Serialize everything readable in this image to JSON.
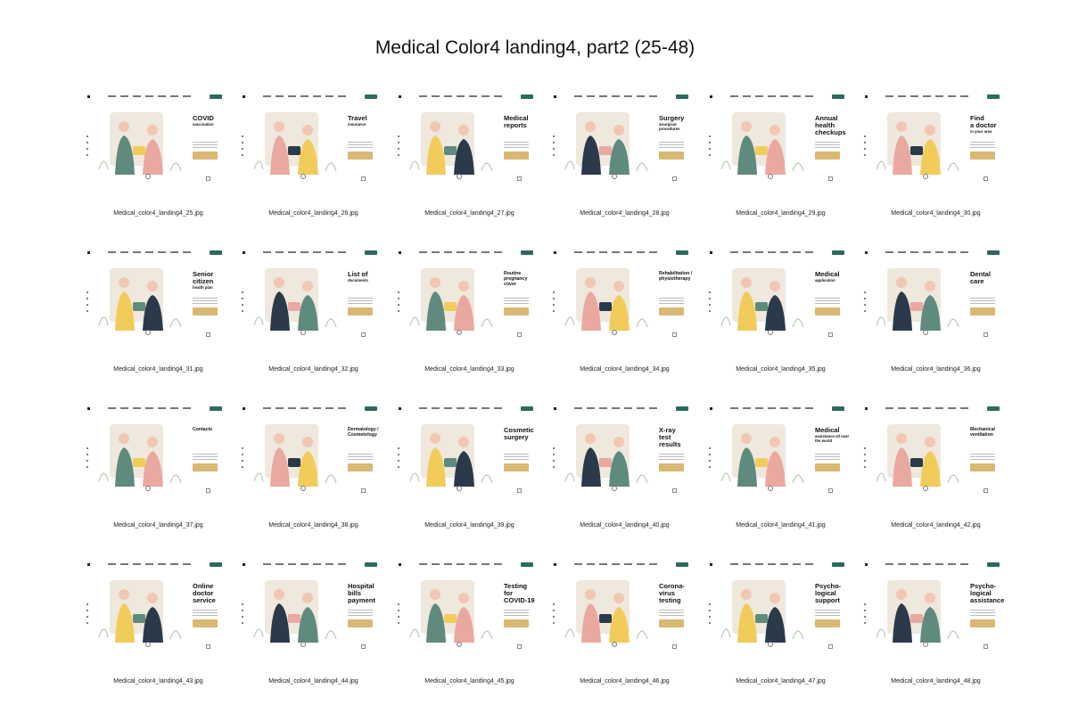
{
  "page": {
    "title": "Medical Color4 landing4, part2 (25-48)"
  },
  "palette": {
    "green": "#5f8a7e",
    "pink": "#e9a9a0",
    "yellow": "#f2cc5b",
    "dark": "#2b3a4a",
    "light": "#efe8dc",
    "button": "#d8b872",
    "nav_button": "#2c6b5f"
  },
  "slides": [
    {
      "title": "COVID",
      "subtitle": "vaccination",
      "file": "Medical_color4_landing4_25.jpg"
    },
    {
      "title": "Travel",
      "subtitle": "insurance",
      "file": "Medical_color4_landing4_26.jpg"
    },
    {
      "title": "Medical\nreports",
      "subtitle": "",
      "file": "Medical_color4_landing4_27.jpg"
    },
    {
      "title": "Surgery",
      "subtitle": "&surgical procedures",
      "file": "Medical_color4_landing4_28.jpg"
    },
    {
      "title": "Annual\nhealth\ncheckups",
      "subtitle": "",
      "file": "Medical_color4_landing4_29.jpg"
    },
    {
      "title": "Find\na doctor",
      "subtitle": "in your area",
      "file": "Medical_color4_landing4_30.jpg"
    },
    {
      "title": "Senior\ncitizen",
      "subtitle": "health plan",
      "file": "Medical_color4_landing4_31.jpg"
    },
    {
      "title": "List of",
      "subtitle": "documents",
      "file": "Medical_color4_landing4_32.jpg"
    },
    {
      "title": "Routine\npregnancy\ncover",
      "subtitle": "",
      "file": "Medical_color4_landing4_33.jpg",
      "small": true
    },
    {
      "title": "Rehabilitation /\nphysiotherapy",
      "subtitle": "",
      "file": "Medical_color4_landing4_34.jpg",
      "small": true
    },
    {
      "title": "Medical",
      "subtitle": "application",
      "file": "Medical_color4_landing4_35.jpg"
    },
    {
      "title": "Dental\ncare",
      "subtitle": "",
      "file": "Medical_color4_landing4_36.jpg"
    },
    {
      "title": "Contacts",
      "subtitle": "",
      "file": "Medical_color4_landing4_37.jpg",
      "small": true
    },
    {
      "title": "Dermatology /\nCosmetology",
      "subtitle": "",
      "file": "Medical_color4_landing4_38.jpg",
      "small": true
    },
    {
      "title": "Cosmetic\nsurgery",
      "subtitle": "",
      "file": "Medical_color4_landing4_39.jpg"
    },
    {
      "title": "X-ray\ntest\nresults",
      "subtitle": "",
      "file": "Medical_color4_landing4_40.jpg"
    },
    {
      "title": "Medical",
      "subtitle": "assistance all over the world",
      "file": "Medical_color4_landing4_41.jpg"
    },
    {
      "title": "Mechanical\nventilation",
      "subtitle": "",
      "file": "Medical_color4_landing4_42.jpg",
      "small": true
    },
    {
      "title": "Online\ndoctor\nservice",
      "subtitle": "",
      "file": "Medical_color4_landing4_43.jpg"
    },
    {
      "title": "Hospital\nbills\npayment",
      "subtitle": "",
      "file": "Medical_color4_landing4_44.jpg"
    },
    {
      "title": "Testing\nfor\nCOVID-19",
      "subtitle": "",
      "file": "Medical_color4_landing4_45.jpg"
    },
    {
      "title": "Corona-\nvirus\ntesting",
      "subtitle": "",
      "file": "Medical_color4_landing4_46.jpg"
    },
    {
      "title": "Psycho-\nlogical\nsupport",
      "subtitle": "",
      "file": "Medical_color4_landing4_47.jpg"
    },
    {
      "title": "Psycho-\nlogical\nassistance",
      "subtitle": "",
      "file": "Medical_color4_landing4_48.jpg"
    }
  ]
}
